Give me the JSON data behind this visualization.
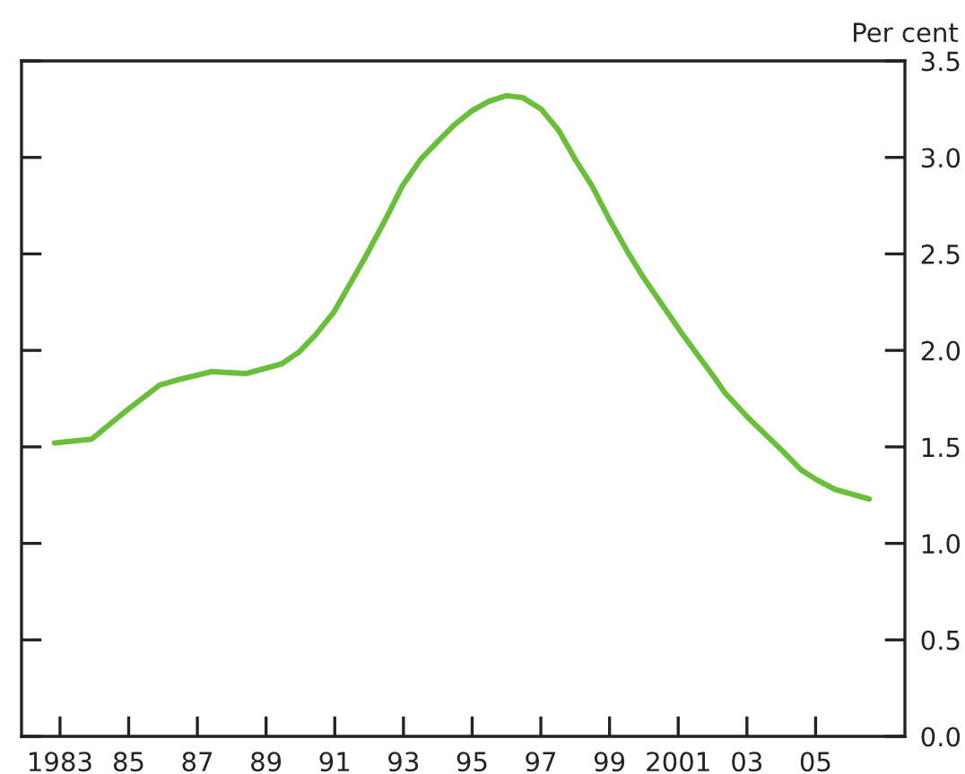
{
  "chart_data": {
    "type": "line",
    "ylabel": "Per cent",
    "xlim": [
      1981.88,
      2007.6
    ],
    "ylim": [
      0,
      3.5
    ],
    "xticks": [
      {
        "value": 1983,
        "label": "1983"
      },
      {
        "value": 1985,
        "label": "85"
      },
      {
        "value": 1987,
        "label": "87"
      },
      {
        "value": 1989,
        "label": "89"
      },
      {
        "value": 1991,
        "label": "91"
      },
      {
        "value": 1993,
        "label": "93"
      },
      {
        "value": 1995,
        "label": "95"
      },
      {
        "value": 1997,
        "label": "97"
      },
      {
        "value": 1999,
        "label": "99"
      },
      {
        "value": 2001,
        "label": "2001"
      },
      {
        "value": 2003,
        "label": "03"
      },
      {
        "value": 2005,
        "label": "05"
      }
    ],
    "yticks": [
      {
        "value": 0,
        "label": "0.0"
      },
      {
        "value": 0.5,
        "label": "0.5"
      },
      {
        "value": 1,
        "label": "1.0"
      },
      {
        "value": 1.5,
        "label": "1.5"
      },
      {
        "value": 2,
        "label": "2.0"
      },
      {
        "value": 2.5,
        "label": "2.5"
      },
      {
        "value": 3,
        "label": "3.0"
      },
      {
        "value": 3.5,
        "label": "3.5"
      }
    ],
    "grid": false,
    "legend": false,
    "marker": "none",
    "line_style": "solid",
    "series": [
      {
        "color": "#6abf3a",
        "x": [
          1982.84,
          1983.92,
          1984.95,
          1985.9,
          1986.48,
          1987.43,
          1988.42,
          1989.45,
          1989.95,
          1990.44,
          1990.98,
          1991.88,
          1992.51,
          1992.96,
          1993.5,
          1994.04,
          1994.49,
          1994.98,
          1995.48,
          1995.99,
          1996.47,
          1997.01,
          1997.52,
          1998.0,
          1998.5,
          1998.99,
          1999.53,
          1999.98,
          2000.52,
          2001.06,
          2001.51,
          2002.05,
          2002.36,
          2003.04,
          2004.03,
          2004.58,
          2005.03,
          2005.56,
          2006.56
        ],
        "values": [
          1.52,
          1.54,
          1.69,
          1.82,
          1.85,
          1.89,
          1.88,
          1.93,
          1.99,
          2.08,
          2.2,
          2.48,
          2.69,
          2.85,
          2.99,
          3.09,
          3.17,
          3.24,
          3.29,
          3.32,
          3.31,
          3.25,
          3.14,
          2.99,
          2.85,
          2.68,
          2.51,
          2.38,
          2.24,
          2.1,
          1.99,
          1.86,
          1.78,
          1.65,
          1.48,
          1.38,
          1.33,
          1.28,
          1.23
        ]
      }
    ]
  }
}
